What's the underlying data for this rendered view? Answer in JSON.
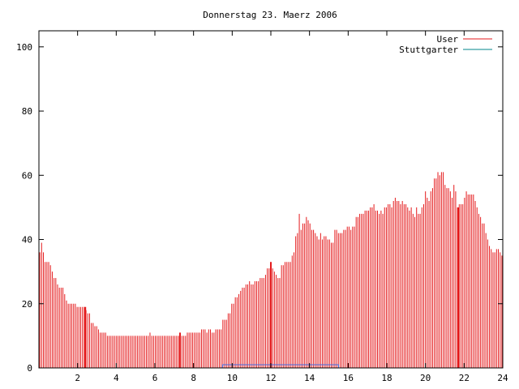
{
  "chart_data": {
    "type": "bar",
    "title": "Donnerstag 23. Maerz 2006",
    "xlim": [
      0,
      24
    ],
    "ylim": [
      0,
      105
    ],
    "xticks": [
      2,
      4,
      6,
      8,
      10,
      12,
      14,
      16,
      18,
      20,
      22,
      24
    ],
    "yticks": [
      0,
      20,
      40,
      60,
      80,
      100
    ],
    "grid": false,
    "legend_position": "top-right",
    "series": [
      {
        "name": "User",
        "color": "#e41a1c",
        "values": [
          36,
          39,
          36,
          33,
          33,
          33,
          32,
          30,
          28,
          28,
          26,
          25,
          25,
          25,
          23,
          21,
          20,
          20,
          20,
          20,
          20,
          19,
          19,
          19,
          19,
          19,
          18,
          17,
          17,
          14,
          14,
          13,
          13,
          12,
          11,
          11,
          11,
          11,
          10,
          10,
          10,
          10,
          10,
          10,
          10,
          10,
          10,
          10,
          10,
          10,
          10,
          10,
          10,
          10,
          10,
          10,
          10,
          10,
          10,
          10,
          10,
          10,
          11,
          10,
          10,
          10,
          10,
          10,
          10,
          10,
          10,
          10,
          10,
          10,
          10,
          10,
          10,
          10,
          10,
          10,
          10,
          10,
          10,
          11,
          11,
          11,
          11,
          11,
          11,
          11,
          11,
          12,
          12,
          12,
          11,
          12,
          12,
          11,
          11,
          12,
          12,
          12,
          12,
          15,
          15,
          15,
          17,
          17,
          20,
          20,
          22,
          22,
          23,
          24,
          25,
          25,
          26,
          26,
          27,
          26,
          26,
          27,
          27,
          27,
          28,
          28,
          28,
          29,
          31,
          31,
          32,
          31,
          30,
          29,
          28,
          28,
          32,
          32,
          33,
          33,
          33,
          33,
          35,
          36,
          41,
          42,
          48,
          43,
          45,
          45,
          47,
          46,
          45,
          43,
          43,
          42,
          41,
          40,
          42,
          40,
          41,
          41,
          40,
          40,
          39,
          39,
          43,
          43,
          42,
          42,
          42,
          43,
          43,
          44,
          44,
          43,
          44,
          44,
          47,
          47,
          48,
          48,
          48,
          49,
          49,
          49,
          50,
          50,
          51,
          49,
          49,
          48,
          49,
          48,
          50,
          50,
          51,
          51,
          50,
          52,
          53,
          52,
          52,
          51,
          52,
          51,
          51,
          50,
          49,
          50,
          48,
          47,
          50,
          48,
          48,
          50,
          51,
          55,
          53,
          52,
          55,
          56,
          59,
          59,
          61,
          60,
          61,
          61,
          57,
          56,
          56,
          55,
          53,
          57,
          55,
          50,
          51,
          51,
          51,
          53,
          55,
          54,
          54,
          54,
          54,
          52,
          50,
          48,
          47,
          45,
          45,
          42,
          40,
          38,
          37,
          36,
          36,
          37,
          37,
          36,
          35
        ]
      },
      {
        "name": "Stuttgarter",
        "color": "#00868b",
        "values": [
          0,
          0,
          0,
          0,
          0,
          0,
          0,
          0,
          0,
          0,
          0,
          0,
          0,
          0,
          0,
          0,
          0,
          0,
          0,
          0,
          0,
          0,
          0,
          0,
          0,
          0,
          0,
          0,
          0,
          0,
          0,
          0,
          0,
          0,
          0,
          0,
          0,
          0,
          0,
          0,
          0,
          0,
          0,
          0,
          0,
          0,
          0,
          0,
          0,
          0,
          0,
          0,
          0,
          0,
          0,
          0,
          0,
          0,
          0,
          0,
          0,
          0,
          0,
          0,
          0,
          0,
          0,
          0,
          0,
          0,
          0,
          0,
          0,
          0,
          0,
          0,
          0,
          0,
          0,
          0,
          0,
          0,
          0,
          0,
          0,
          0,
          0,
          0,
          0,
          0,
          0,
          0,
          0,
          0,
          0,
          0,
          0,
          0,
          0,
          0,
          0,
          0,
          0,
          0,
          0,
          0,
          0,
          0,
          0,
          0,
          0,
          0,
          0,
          0,
          0,
          0,
          0,
          0,
          0,
          0,
          0,
          0,
          0,
          0,
          0,
          0,
          0,
          0,
          0,
          0,
          0,
          0,
          0,
          0,
          0,
          0,
          0,
          0,
          0,
          0,
          0,
          0,
          0,
          0,
          0,
          0,
          0,
          0,
          0,
          0,
          0,
          0,
          0,
          0,
          0,
          0,
          0,
          0,
          0,
          0,
          0,
          0,
          0,
          0,
          0,
          0,
          0,
          0,
          0,
          0,
          0,
          0,
          0,
          0,
          0,
          0,
          0,
          0,
          0,
          0,
          0,
          0,
          0,
          0,
          0,
          0,
          0,
          0,
          0,
          0,
          0,
          0,
          0,
          0,
          0,
          0,
          0,
          0,
          0,
          0,
          0,
          0,
          0,
          0,
          0,
          0,
          0,
          0,
          0,
          0,
          0,
          0,
          0,
          0,
          0,
          0,
          0,
          0,
          0,
          0,
          0,
          0,
          0,
          0,
          0,
          0,
          0,
          0,
          0,
          0,
          0,
          0,
          0,
          0,
          0,
          0,
          0,
          0,
          0,
          0,
          0,
          0,
          0,
          0,
          0,
          0,
          0,
          0,
          0,
          0,
          0,
          0,
          0,
          0,
          0,
          0,
          0,
          0,
          0,
          0,
          0,
          0,
          0,
          0,
          0,
          0,
          0,
          0,
          0,
          0,
          0,
          0,
          0,
          0,
          0
        ]
      }
    ],
    "highlight_bars": [
      {
        "x": 2.4,
        "value": 19
      },
      {
        "x": 7.3,
        "value": 11
      },
      {
        "x": 12.0,
        "value": 33
      },
      {
        "x": 21.7,
        "value": 50
      }
    ],
    "band": {
      "x_start": 9.5,
      "x_end": 15.5,
      "value": 1,
      "color": "#4169e1"
    }
  }
}
